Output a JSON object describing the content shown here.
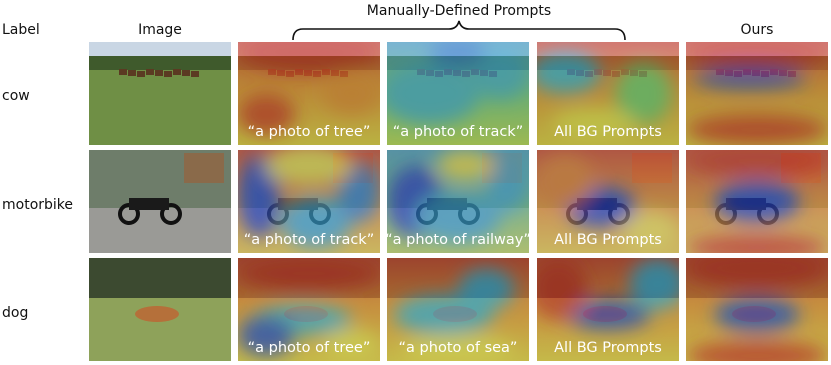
{
  "header": {
    "label": "Label",
    "image": "Image",
    "prompts": "Manually-Defined Prompts",
    "ours": "Ours"
  },
  "rows": [
    {
      "label": "cow",
      "captions": [
        "“a photo of tree”",
        "“a photo of track”",
        "All BG Prompts"
      ]
    },
    {
      "label": "motorbike",
      "captions": [
        "“a photo of track”",
        "“a photo of railway”",
        "All BG Prompts"
      ]
    },
    {
      "label": "dog",
      "captions": [
        "“a photo of tree”",
        "“a photo of sea”",
        "All BG Prompts"
      ]
    }
  ]
}
